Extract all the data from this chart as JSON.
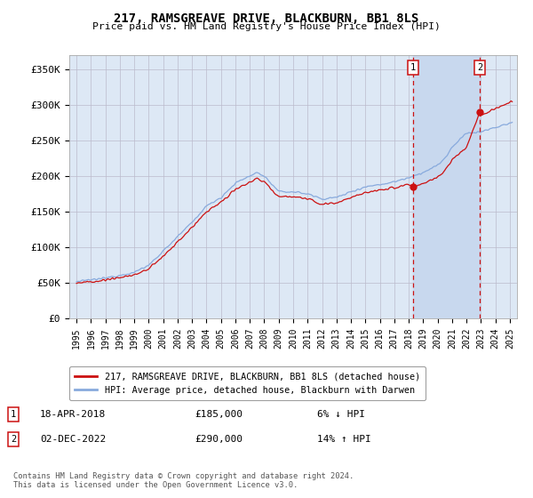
{
  "title": "217, RAMSGREAVE DRIVE, BLACKBURN, BB1 8LS",
  "subtitle": "Price paid vs. HM Land Registry's House Price Index (HPI)",
  "ylabel_ticks": [
    "£0",
    "£50K",
    "£100K",
    "£150K",
    "£200K",
    "£250K",
    "£300K",
    "£350K"
  ],
  "ylabel_values": [
    0,
    50000,
    100000,
    150000,
    200000,
    250000,
    300000,
    350000
  ],
  "ylim": [
    0,
    370000
  ],
  "xlim_start": 1994.5,
  "xlim_end": 2025.5,
  "hpi_color": "#88aadd",
  "price_color": "#cc1111",
  "dashed_color": "#cc1111",
  "background_color": "#dde8f5",
  "shade_color": "#c8d8ee",
  "grid_color": "#bbbbcc",
  "sale1_x": 2018.29,
  "sale1_y": 185000,
  "sale2_x": 2022.92,
  "sale2_y": 290000,
  "legend_label1": "217, RAMSGREAVE DRIVE, BLACKBURN, BB1 8LS (detached house)",
  "legend_label2": "HPI: Average price, detached house, Blackburn with Darwen",
  "note1_num": "1",
  "note1_date": "18-APR-2018",
  "note1_price": "£185,000",
  "note1_hpi": "6% ↓ HPI",
  "note2_num": "2",
  "note2_date": "02-DEC-2022",
  "note2_price": "£290,000",
  "note2_hpi": "14% ↑ HPI",
  "footer": "Contains HM Land Registry data © Crown copyright and database right 2024.\nThis data is licensed under the Open Government Licence v3.0."
}
